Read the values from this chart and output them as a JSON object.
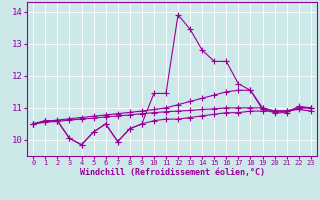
{
  "xlabel": "Windchill (Refroidissement éolien,°C)",
  "xlim": [
    -0.5,
    23.5
  ],
  "ylim": [
    9.5,
    14.3
  ],
  "yticks": [
    10,
    11,
    12,
    13,
    14
  ],
  "xticks": [
    0,
    1,
    2,
    3,
    4,
    5,
    6,
    7,
    8,
    9,
    10,
    11,
    12,
    13,
    14,
    15,
    16,
    17,
    18,
    19,
    20,
    21,
    22,
    23
  ],
  "bg_color": "#cce8e8",
  "line_color": "#990099",
  "series": [
    {
      "x": [
        0,
        1,
        2,
        3,
        4,
        5,
        6,
        7,
        8,
        9,
        10,
        11,
        12,
        13,
        14,
        15,
        16,
        17,
        18,
        19,
        20,
        21,
        22,
        23
      ],
      "y": [
        10.5,
        10.6,
        10.6,
        10.05,
        9.85,
        10.25,
        10.5,
        9.95,
        10.35,
        10.5,
        10.6,
        10.65,
        10.65,
        10.7,
        10.75,
        10.8,
        10.85,
        10.85,
        10.9,
        10.9,
        10.9,
        10.9,
        10.95,
        10.9
      ]
    },
    {
      "x": [
        0,
        1,
        2,
        3,
        4,
        5,
        6,
        7,
        8,
        9,
        10,
        11,
        12,
        13,
        14,
        15,
        16,
        17,
        18,
        19,
        20,
        21,
        22,
        23
      ],
      "y": [
        10.5,
        10.6,
        10.6,
        10.05,
        9.85,
        10.25,
        10.5,
        9.95,
        10.35,
        10.5,
        11.45,
        11.45,
        13.9,
        13.45,
        12.8,
        12.45,
        12.45,
        11.75,
        11.55,
        10.95,
        10.85,
        10.85,
        11.05,
        11.0
      ]
    },
    {
      "x": [
        0,
        1,
        2,
        3,
        4,
        5,
        6,
        7,
        8,
        9,
        10,
        11,
        12,
        13,
        14,
        15,
        16,
        17,
        18,
        19,
        20,
        21,
        22,
        23
      ],
      "y": [
        10.5,
        10.58,
        10.62,
        10.66,
        10.7,
        10.74,
        10.78,
        10.82,
        10.86,
        10.9,
        10.95,
        11.0,
        11.1,
        11.2,
        11.3,
        11.4,
        11.5,
        11.55,
        11.55,
        11.0,
        10.9,
        10.9,
        11.0,
        11.0
      ]
    },
    {
      "x": [
        0,
        1,
        2,
        3,
        4,
        5,
        6,
        7,
        8,
        9,
        10,
        11,
        12,
        13,
        14,
        15,
        16,
        17,
        18,
        19,
        20,
        21,
        22,
        23
      ],
      "y": [
        10.5,
        10.55,
        10.58,
        10.62,
        10.65,
        10.68,
        10.72,
        10.75,
        10.78,
        10.82,
        10.85,
        10.88,
        10.9,
        10.92,
        10.95,
        10.97,
        11.0,
        11.0,
        11.0,
        11.0,
        10.9,
        10.9,
        11.0,
        11.0
      ]
    }
  ]
}
